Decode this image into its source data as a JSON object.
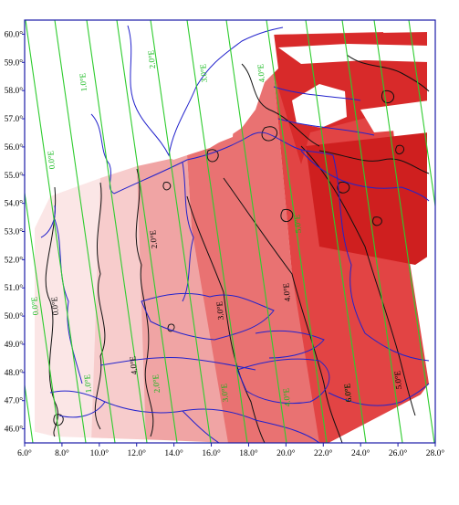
{
  "map": {
    "lon_axis": {
      "min": 6,
      "max": 28,
      "ticks": [
        "6.0°",
        "8.0°",
        "10.0°",
        "12.0°",
        "14.0°",
        "16.0°",
        "18.0°",
        "20.0°",
        "22.0°",
        "24.0°",
        "26.0°",
        "28.0°"
      ]
    },
    "lat_axis": {
      "min": 45.5,
      "max": 60.5,
      "ticks": [
        "46.0°",
        "47.0°",
        "48.0°",
        "49.0°",
        "50.0°",
        "51.0°",
        "52.0°",
        "53.0°",
        "54.0°",
        "55.0°",
        "56.0°",
        "57.0°",
        "58.0°",
        "59.0°",
        "60.0°"
      ]
    },
    "isogonic_labels": [
      "0.0°E",
      "1.0°E",
      "2.0°E",
      "3.0°E",
      "4.0°E",
      "5.0°E",
      "0.0°E",
      "1.0°E",
      "2.0°E",
      "3.0°E",
      "4.0°E",
      "5.0°E"
    ],
    "contour_labels": [
      "0.0°E",
      "2.0°E",
      "3.0°E",
      "4.0°E",
      "5.0°E",
      "6.0°E",
      "4.0°E"
    ],
    "colors": {
      "frame": "#1a1aa8",
      "borders": "#2222cc",
      "isogonic": "#2ecc2e",
      "contour": "#111111",
      "ramp": [
        "#fbe3e3",
        "#f6c3c3",
        "#ee9393",
        "#e65c5c",
        "#e03535",
        "#d41e1e",
        "#c41414"
      ]
    }
  }
}
